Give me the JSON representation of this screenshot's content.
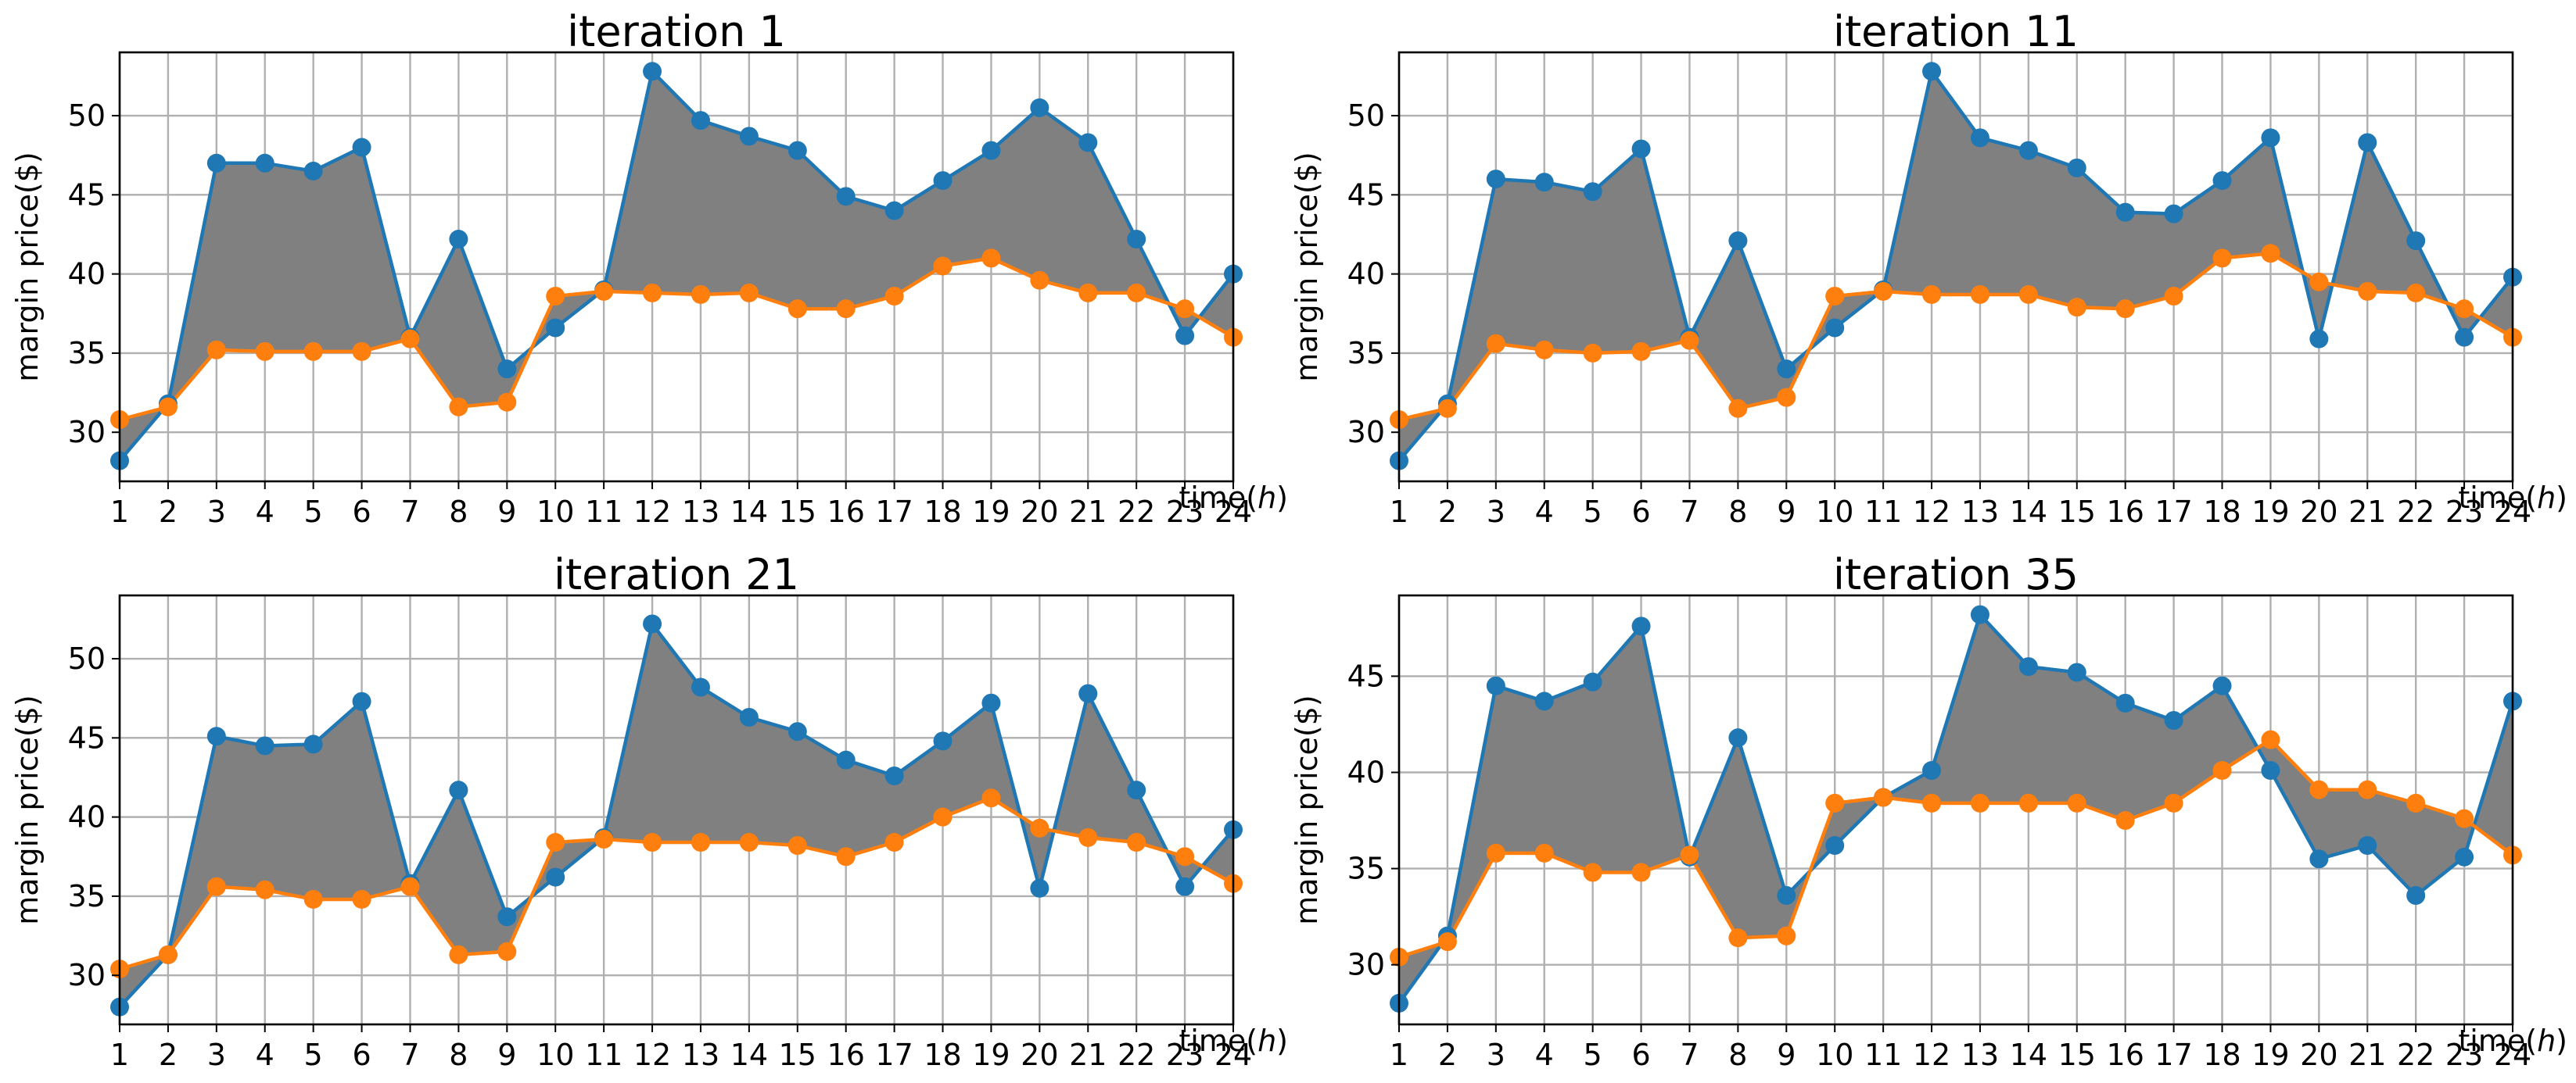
{
  "chart_data": [
    {
      "type": "line",
      "title": "iteration 1",
      "xlabel": "time(h)",
      "ylabel": "margin price($)",
      "categories": [
        1,
        2,
        3,
        4,
        5,
        6,
        7,
        8,
        9,
        10,
        11,
        12,
        13,
        14,
        15,
        16,
        17,
        18,
        19,
        20,
        21,
        22,
        23,
        24
      ],
      "ylim": [
        26.9,
        54.0
      ],
      "yticks": [
        30,
        35,
        40,
        45,
        50
      ],
      "grid": true,
      "fill_between": true,
      "series": [
        {
          "values": [
            28.2,
            31.8,
            47.0,
            47.0,
            46.5,
            48.0,
            36.0,
            42.2,
            34.0,
            36.6,
            39.0,
            52.8,
            49.7,
            48.7,
            47.8,
            44.9,
            44.0,
            45.9,
            47.8,
            50.5,
            48.3,
            42.2,
            36.1,
            40.0
          ],
          "color": "#1f77b4"
        },
        {
          "values": [
            30.8,
            31.6,
            35.2,
            35.1,
            35.1,
            35.1,
            35.9,
            31.6,
            31.9,
            38.6,
            38.9,
            38.8,
            38.7,
            38.8,
            37.8,
            37.8,
            38.6,
            40.5,
            41.0,
            39.6,
            38.8,
            38.8,
            37.8,
            36.0
          ],
          "color": "#ff7f0e"
        }
      ]
    },
    {
      "type": "line",
      "title": "iteration 11",
      "xlabel": "time(h)",
      "ylabel": "margin price($)",
      "categories": [
        1,
        2,
        3,
        4,
        5,
        6,
        7,
        8,
        9,
        10,
        11,
        12,
        13,
        14,
        15,
        16,
        17,
        18,
        19,
        20,
        21,
        22,
        23,
        24
      ],
      "ylim": [
        26.9,
        54.0
      ],
      "yticks": [
        30,
        35,
        40,
        45,
        50
      ],
      "grid": true,
      "fill_between": true,
      "series": [
        {
          "values": [
            28.2,
            31.8,
            46.0,
            45.8,
            45.2,
            47.9,
            36.0,
            42.1,
            34.0,
            36.6,
            39.0,
            52.8,
            48.6,
            47.8,
            46.7,
            43.9,
            43.8,
            45.9,
            48.6,
            35.9,
            48.3,
            42.1,
            36.0,
            39.8
          ],
          "color": "#1f77b4"
        },
        {
          "values": [
            30.8,
            31.5,
            35.6,
            35.2,
            35.0,
            35.1,
            35.8,
            31.5,
            32.2,
            38.6,
            38.9,
            38.7,
            38.7,
            38.7,
            37.9,
            37.8,
            38.6,
            41.0,
            41.3,
            39.5,
            38.9,
            38.8,
            37.8,
            36.0
          ],
          "color": "#ff7f0e"
        }
      ]
    },
    {
      "type": "line",
      "title": "iteration 21",
      "xlabel": "time(h)",
      "ylabel": "margin price($)",
      "categories": [
        1,
        2,
        3,
        4,
        5,
        6,
        7,
        8,
        9,
        10,
        11,
        12,
        13,
        14,
        15,
        16,
        17,
        18,
        19,
        20,
        21,
        22,
        23,
        24
      ],
      "ylim": [
        26.9,
        54.0
      ],
      "yticks": [
        30,
        35,
        40,
        45,
        50
      ],
      "grid": true,
      "fill_between": true,
      "series": [
        {
          "values": [
            28.0,
            31.3,
            45.1,
            44.5,
            44.6,
            47.3,
            35.8,
            41.7,
            33.7,
            36.2,
            38.7,
            52.2,
            48.2,
            46.3,
            45.4,
            43.6,
            42.6,
            44.8,
            47.2,
            35.5,
            47.8,
            41.7,
            35.6,
            39.2
          ],
          "color": "#1f77b4"
        },
        {
          "values": [
            30.4,
            31.3,
            35.6,
            35.4,
            34.8,
            34.8,
            35.6,
            31.3,
            31.5,
            38.4,
            38.6,
            38.4,
            38.4,
            38.4,
            38.2,
            37.5,
            38.4,
            40.0,
            41.2,
            39.3,
            38.7,
            38.4,
            37.5,
            35.8
          ],
          "color": "#ff7f0e"
        }
      ]
    },
    {
      "type": "line",
      "title": "iteration 35",
      "xlabel": "time(h)",
      "ylabel": "margin price($)",
      "categories": [
        1,
        2,
        3,
        4,
        5,
        6,
        7,
        8,
        9,
        10,
        11,
        12,
        13,
        14,
        15,
        16,
        17,
        18,
        19,
        20,
        21,
        22,
        23,
        24
      ],
      "ylim": [
        26.9,
        49.2
      ],
      "yticks": [
        30,
        35,
        40,
        45
      ],
      "grid": true,
      "fill_between": true,
      "series": [
        {
          "values": [
            28.0,
            31.5,
            44.5,
            43.7,
            44.7,
            47.6,
            35.6,
            41.8,
            33.6,
            36.2,
            38.7,
            40.1,
            48.2,
            45.5,
            45.2,
            43.6,
            42.7,
            44.5,
            40.1,
            35.5,
            36.2,
            33.6,
            35.6,
            43.7
          ],
          "color": "#1f77b4"
        },
        {
          "values": [
            30.4,
            31.2,
            35.8,
            35.8,
            34.8,
            34.8,
            35.7,
            31.4,
            31.5,
            38.4,
            38.7,
            38.4,
            38.4,
            38.4,
            38.4,
            37.5,
            38.4,
            40.1,
            41.7,
            39.1,
            39.1,
            38.4,
            37.6,
            35.7
          ],
          "color": "#ff7f0e"
        }
      ]
    }
  ]
}
